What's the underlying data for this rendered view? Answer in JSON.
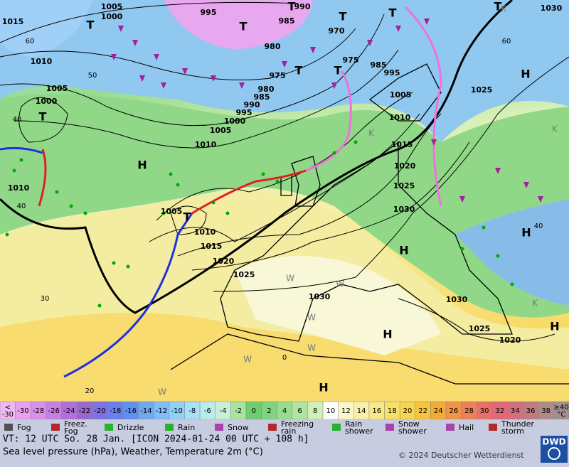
{
  "map": {
    "isobar_labels": [
      "1005",
      "1000",
      "995",
      "990",
      "985",
      "970",
      "975",
      "985",
      "995",
      "980",
      "975",
      "980",
      "985",
      "990",
      "995",
      "1000",
      "1005",
      "1010",
      "1005",
      "1000",
      "1010",
      "1015",
      "1010",
      "1005",
      "1010",
      "1015",
      "1020",
      "1025",
      "1030",
      "1030",
      "1025",
      "1020",
      "1015",
      "1010",
      "1005",
      "1025",
      "1030",
      "1030",
      "1025",
      "1020"
    ],
    "pressure_centers": [
      "T",
      "T",
      "T",
      "T",
      "T",
      "T",
      "T",
      "H",
      "H",
      "T",
      "H",
      "H",
      "H",
      "H",
      "H",
      "T",
      "T"
    ],
    "temperature_labels": [
      "60",
      "50",
      "40",
      "40",
      "30",
      "20",
      "0",
      "60",
      "40"
    ],
    "air_mass_labels": [
      "W",
      "W",
      "W",
      "W",
      "W",
      "W",
      "K",
      "K",
      "K",
      "K"
    ]
  },
  "temperature_scale": {
    "labels": [
      "<\n-30",
      "-30",
      "-28",
      "-26",
      "-24",
      "-22",
      "-20",
      "-18",
      "-16",
      "-14",
      "-12",
      "-10",
      "-8",
      "-6",
      "-4",
      "-2",
      "0",
      "2",
      "4",
      "6",
      "8",
      "10",
      "12",
      "14",
      "16",
      "18",
      "20",
      "22",
      "24",
      "26",
      "28",
      "30",
      "32",
      "34",
      "36",
      "38",
      "≥40\n°C"
    ],
    "colors": [
      "#f0b8f0",
      "#e8a0f0",
      "#d890e8",
      "#c880e0",
      "#b070d8",
      "#9868d0",
      "#8070e0",
      "#6880e8",
      "#6090f0",
      "#70a8f0",
      "#80bcf8",
      "#90d0f8",
      "#a8e0f8",
      "#b8ece8",
      "#c8f0d8",
      "#a8e4a0",
      "#70cc70",
      "#80d480",
      "#98dc90",
      "#b0e4a0",
      "#d0f0b8",
      "#ffffff",
      "#f8f8c8",
      "#f8f0a8",
      "#f8e888",
      "#f8e068",
      "#f8d450",
      "#f8c440",
      "#f0ac38",
      "#f09448",
      "#ec8058",
      "#e87068",
      "#e06878",
      "#d07080",
      "#c07c80",
      "#b08a88",
      "#a09090"
    ]
  },
  "legend": [
    "Fog",
    "Freez.\nFog",
    "Drizzle",
    "Rain",
    "Snow",
    "Freezing\nrain",
    "Rain\nshower",
    "Snow\nshower",
    "Hail",
    "Thunder\nstorm"
  ],
  "footer": {
    "valid_time": "VT: 12 UTC So.  28 Jan. [ICON 2024-01-24  00 UTC + 108 h]",
    "description": "Sea level pressure (hPa), Weather, Temperature 2m (°C)",
    "copyright": "© 2024 Deutscher Wetterdienst",
    "logo": "DWD"
  }
}
